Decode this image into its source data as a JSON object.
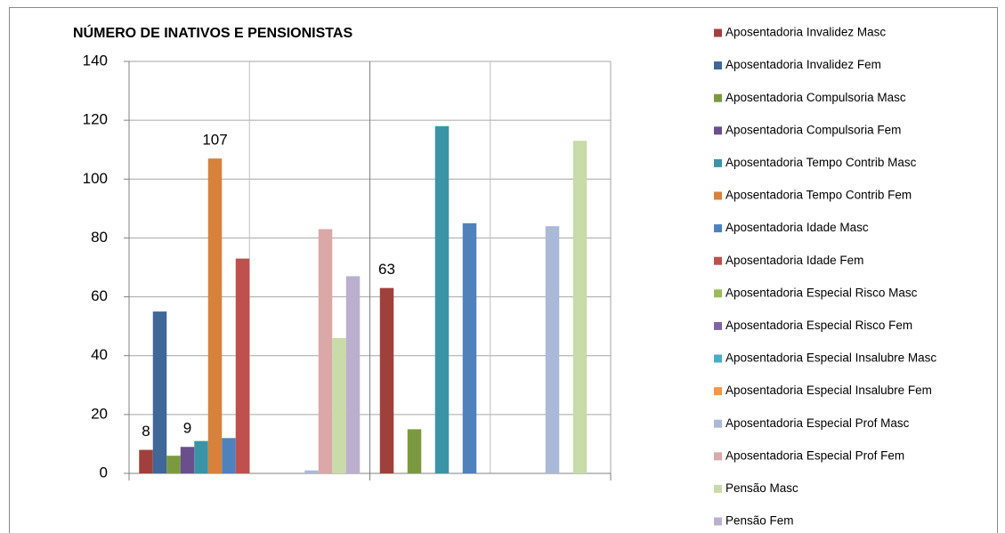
{
  "chart_data": {
    "type": "bar",
    "title": "NÚMERO DE INATIVOS E PENSIONISTAS",
    "categories": [
      null,
      null
    ],
    "ylim": [
      0,
      140
    ],
    "yticks": [
      0,
      20,
      40,
      60,
      80,
      100,
      120,
      140
    ],
    "grid": true,
    "legend": "right",
    "series": [
      {
        "name": "Aposentadoria Invalidez Masc",
        "color": "#a0403c",
        "values": [
          8,
          63
        ],
        "label_points": [
          0,
          1
        ]
      },
      {
        "name": "Aposentadoria Invalidez Fem",
        "color": "#3f6797",
        "values": [
          55,
          0
        ]
      },
      {
        "name": "Aposentadoria Compulsoria Masc",
        "color": "#7b9a3f",
        "values": [
          6,
          15
        ]
      },
      {
        "name": "Aposentadoria Compulsoria Fem",
        "color": "#6a4f8c",
        "values": [
          9,
          0
        ],
        "label_points": [
          0
        ]
      },
      {
        "name": "Aposentadoria Tempo Contrib Masc",
        "color": "#3b93a6",
        "values": [
          11,
          118
        ]
      },
      {
        "name": "Aposentadoria Tempo Contrib Fem",
        "color": "#d7813a",
        "values": [
          107,
          0
        ],
        "label_points": [
          0
        ]
      },
      {
        "name": "Aposentadoria Idade Masc",
        "color": "#4f81bd",
        "values": [
          12,
          85
        ]
      },
      {
        "name": "Aposentadoria Idade Fem",
        "color": "#c0504d",
        "values": [
          73,
          0
        ]
      },
      {
        "name": "Aposentadoria Especial Risco Masc",
        "color": "#9bbb59",
        "values": [
          0,
          0
        ]
      },
      {
        "name": "Aposentadoria Especial Risco Fem",
        "color": "#8064a2",
        "values": [
          0,
          0
        ]
      },
      {
        "name": "Aposentadoria Especial Insalubre Masc",
        "color": "#4bacc6",
        "values": [
          0,
          0
        ]
      },
      {
        "name": "Aposentadoria Especial Insalubre Fem",
        "color": "#f79646",
        "values": [
          0,
          0
        ]
      },
      {
        "name": "Aposentadoria Especial Prof Masc",
        "color": "#aab9d8",
        "values": [
          1,
          84
        ]
      },
      {
        "name": "Aposentadoria Especial Prof Fem",
        "color": "#d9a8a7",
        "values": [
          83,
          0
        ]
      },
      {
        "name": "Pensão Masc",
        "color": "#c8dba8",
        "values": [
          46,
          113
        ]
      },
      {
        "name": "Pensão Fem",
        "color": "#bbafd0",
        "values": [
          67,
          0
        ]
      }
    ]
  }
}
